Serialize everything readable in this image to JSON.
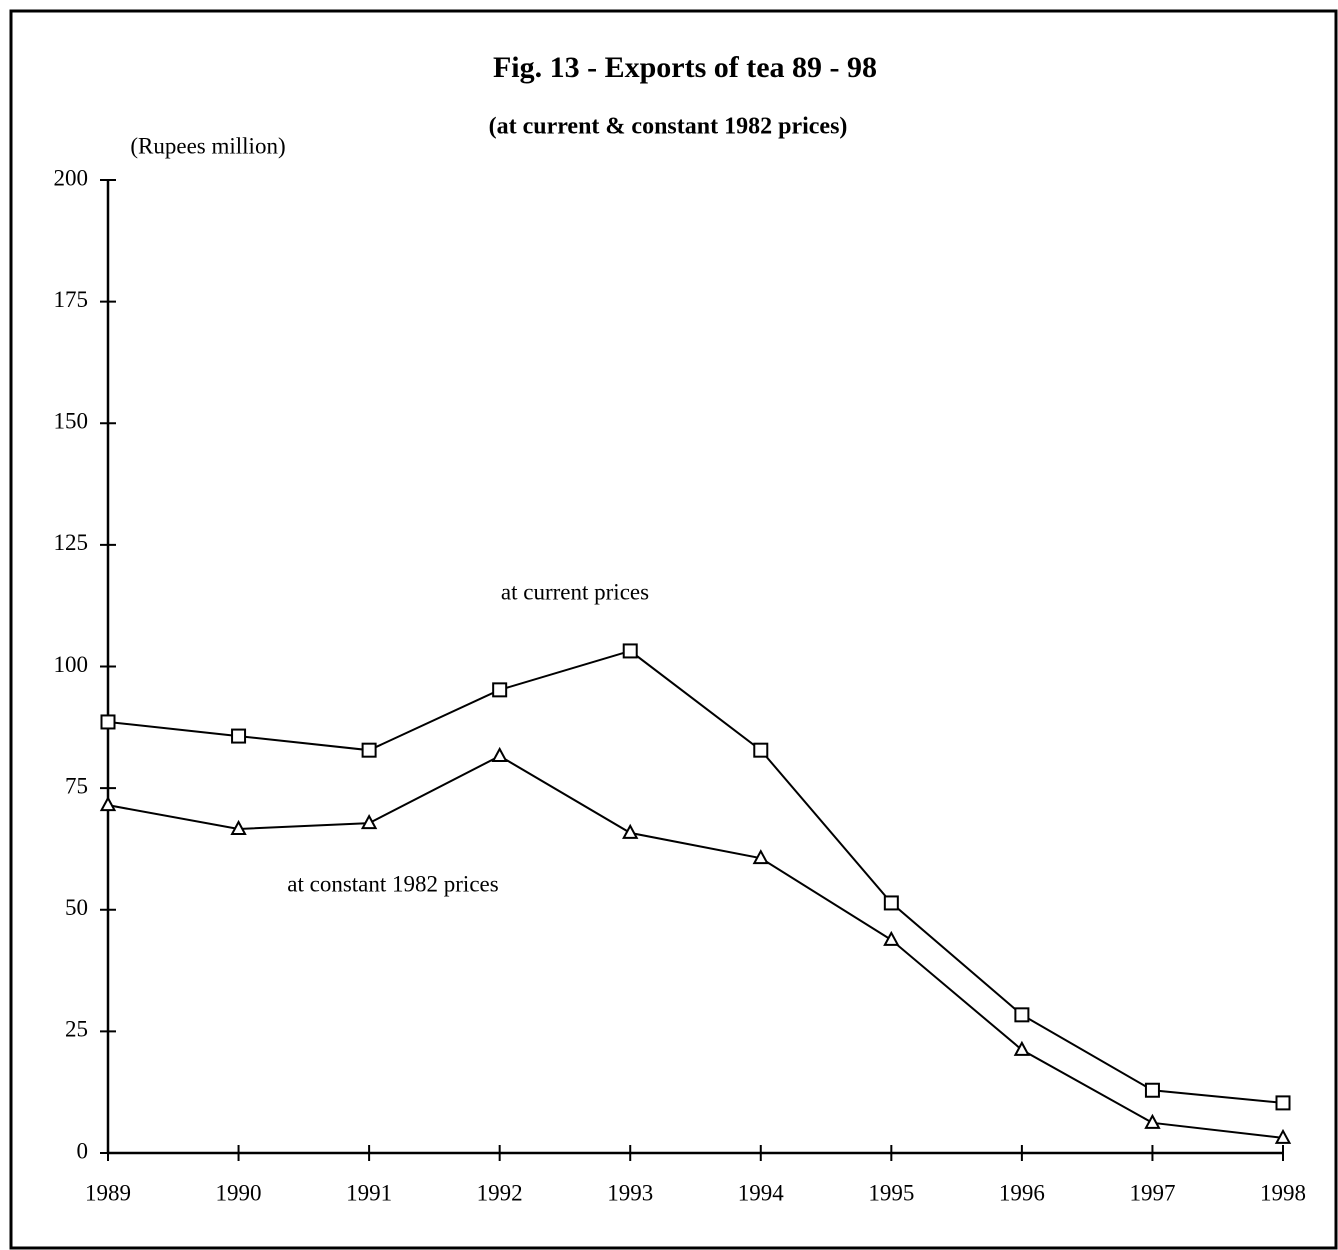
{
  "chart_data": {
    "type": "line",
    "title": "Fig. 13 - Exports of tea 89 - 98",
    "subtitle": "(at current & constant 1982 prices)",
    "y_axis_label": "(Rupees million)",
    "x": [
      1989,
      1990,
      1991,
      1992,
      1993,
      1994,
      1995,
      1996,
      1997,
      1998
    ],
    "xlim": [
      1989,
      1998
    ],
    "xticks": [
      1989,
      1990,
      1991,
      1992,
      1993,
      1994,
      1995,
      1996,
      1997,
      1998
    ],
    "ylim": [
      0,
      200
    ],
    "yticks": [
      0,
      25,
      50,
      75,
      100,
      125,
      150,
      175,
      200
    ],
    "grid": false,
    "series": [
      {
        "name": "at current prices",
        "color": "#000000",
        "marker": "square",
        "values": [
          88.6,
          85.7,
          82.8,
          95.2,
          103.2,
          82.8,
          51.4,
          28.4,
          12.9,
          10.3
        ]
      },
      {
        "name": "at constant 1982 prices",
        "color": "#000000",
        "marker": "triangle",
        "values": [
          71.5,
          66.6,
          67.8,
          81.6,
          65.8,
          60.6,
          43.8,
          21.2,
          6.2,
          3.1
        ]
      }
    ]
  }
}
